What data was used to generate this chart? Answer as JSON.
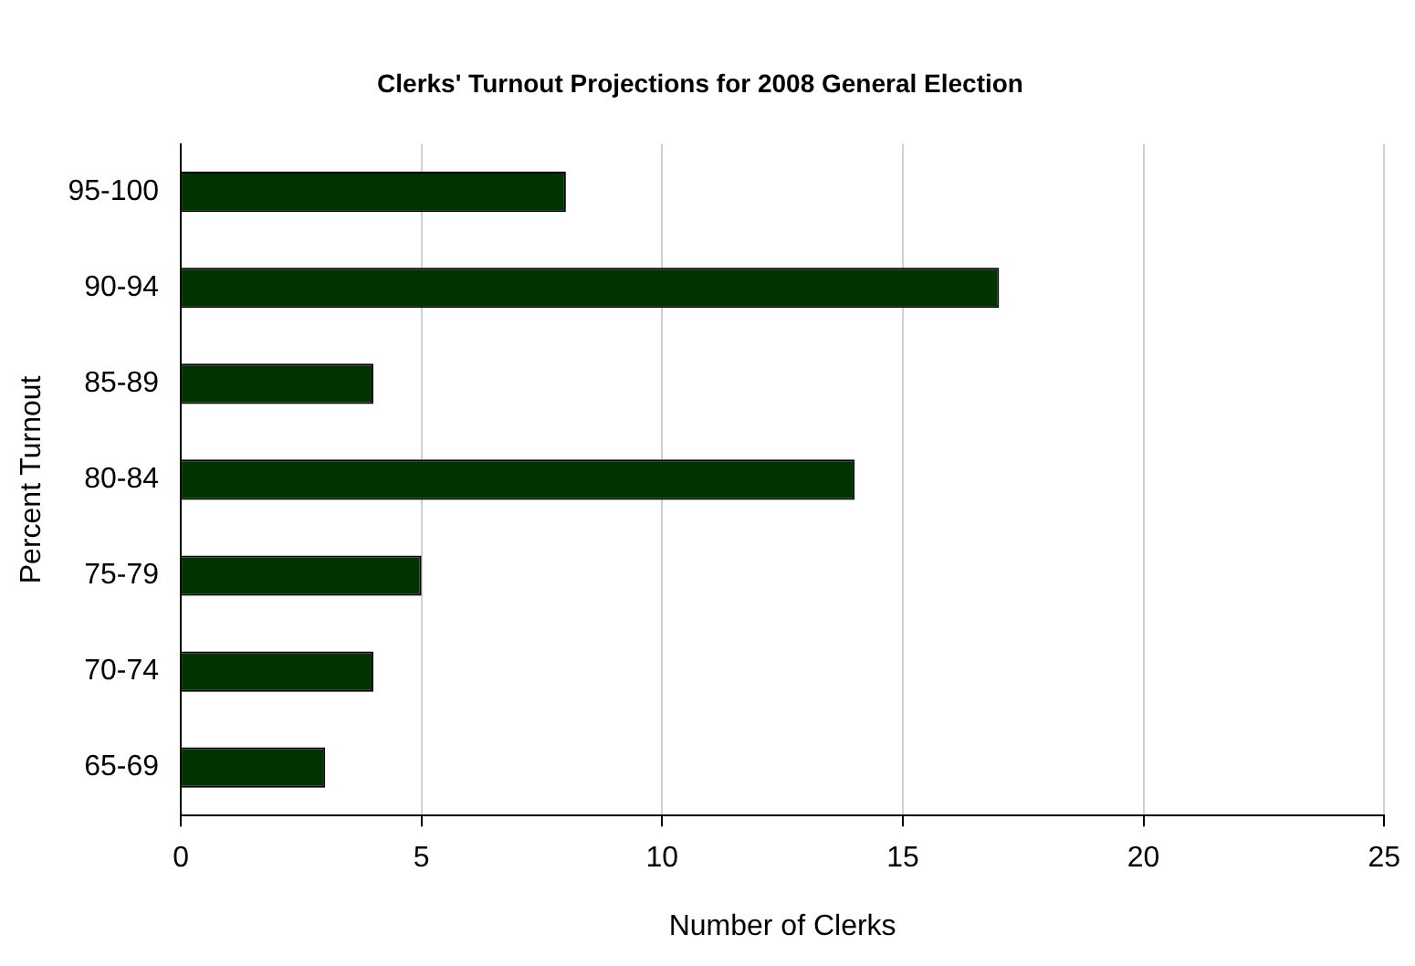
{
  "chart_data": {
    "type": "bar",
    "orientation": "horizontal",
    "title": "Clerks' Turnout Projections for 2008 General Election",
    "xlabel": "Number of Clerks",
    "ylabel": "Percent Turnout",
    "categories": [
      "95-100",
      "90-94",
      "85-89",
      "80-84",
      "75-79",
      "70-74",
      "65-69"
    ],
    "values": [
      8,
      17,
      4,
      14,
      5,
      4,
      3
    ],
    "color": "#003300",
    "xlim": [
      0,
      25
    ],
    "xticks": [
      0,
      5,
      10,
      15,
      20,
      25
    ],
    "grid": "x",
    "legend": false
  }
}
